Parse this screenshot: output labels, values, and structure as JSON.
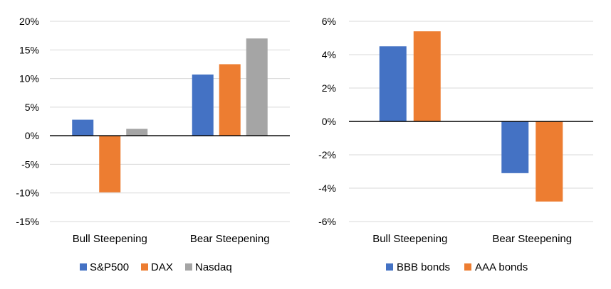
{
  "chart_data": [
    {
      "type": "bar",
      "categories": [
        "Bull Steepening",
        "Bear Steepening"
      ],
      "series": [
        {
          "name": "S&P500",
          "values": [
            2.8,
            10.7
          ],
          "color": "#4472C4"
        },
        {
          "name": "DAX",
          "values": [
            -9.9,
            12.5
          ],
          "color": "#ED7D31"
        },
        {
          "name": "Nasdaq",
          "values": [
            1.2,
            17.0
          ],
          "color": "#A5A5A5"
        }
      ],
      "ylim": [
        -15,
        20
      ],
      "yticks": [
        -15,
        -10,
        -5,
        0,
        5,
        10,
        15,
        20
      ],
      "ytick_labels": [
        "-15%",
        "-10%",
        "-5%",
        "0%",
        "5%",
        "10%",
        "15%",
        "20%"
      ],
      "grid": true,
      "legend": "bottom"
    },
    {
      "type": "bar",
      "categories": [
        "Bull Steepening",
        "Bear Steepening"
      ],
      "series": [
        {
          "name": "BBB bonds",
          "values": [
            4.5,
            -3.1
          ],
          "color": "#4472C4"
        },
        {
          "name": "AAA bonds",
          "values": [
            5.4,
            -4.8
          ],
          "color": "#ED7D31"
        }
      ],
      "ylim": [
        -6,
        6
      ],
      "yticks": [
        -6,
        -4,
        -2,
        0,
        2,
        4,
        6
      ],
      "ytick_labels": [
        "-6%",
        "-4%",
        "-2%",
        "0%",
        "2%",
        "4%",
        "6%"
      ],
      "grid": true,
      "legend": "bottom"
    }
  ]
}
